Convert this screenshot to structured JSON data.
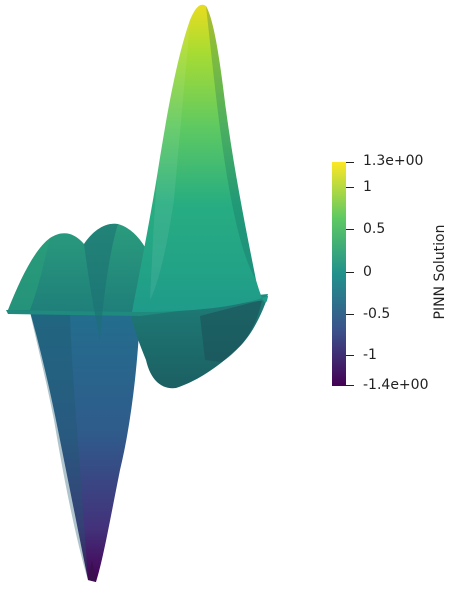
{
  "colorbar": {
    "title": "PINN Solution",
    "range": [
      -1.4,
      1.3
    ],
    "ticks": [
      {
        "label": "1.3e+00",
        "value": 1.3
      },
      {
        "label": "1",
        "value": 1.0
      },
      {
        "label": "0.5",
        "value": 0.5
      },
      {
        "label": "0",
        "value": 0.0
      },
      {
        "label": "-0.5",
        "value": -0.5
      },
      {
        "label": "-1",
        "value": -1.0
      },
      {
        "label": "-1.4e+00",
        "value": -1.4
      }
    ],
    "colormap": [
      "#440154",
      "#3b528b",
      "#21918c",
      "#5ec962",
      "#fde725"
    ]
  },
  "surface": {
    "colormap_name": "viridis",
    "features": [
      "tall-positive-peak",
      "deep-negative-trough",
      "two-small-bumps",
      "flat-plane-edge"
    ]
  }
}
